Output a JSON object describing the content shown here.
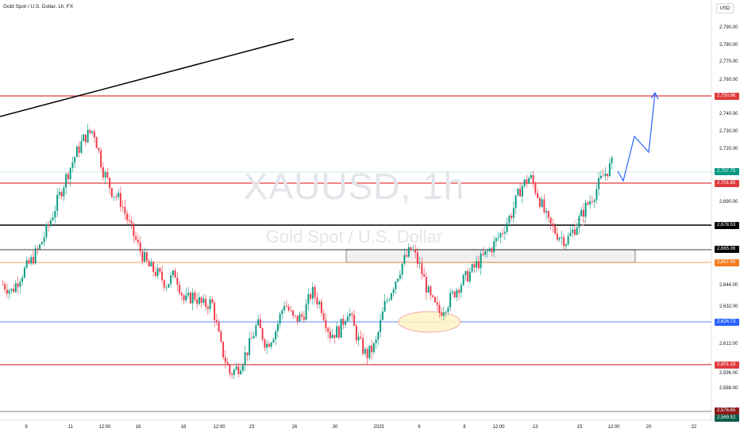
{
  "header": {
    "symbol_title": "Gold Spot / U.S. Dollar, 1h, FX",
    "currency_button": "USD"
  },
  "watermark": {
    "symbol": "XAUUSD, 1h",
    "description": "Gold Spot / U.S. Dollar"
  },
  "price_axis": {
    "labels": [
      "2,790.00",
      "2,780.00",
      "2,770.00",
      "2,760.00",
      "2,740.00",
      "2,730.00",
      "2,720.00",
      "2,690.00",
      "2,644.00",
      "2,632.00",
      "2,612.00",
      "2,596.00",
      "2,588.00"
    ]
  },
  "price_tags": [
    {
      "text": "2,750.96",
      "color": "#e03a3e"
    },
    {
      "text": "2,707.75",
      "color": "#089981"
    },
    {
      "text": "2,701.65",
      "color": "#e03a3e"
    },
    {
      "text": "2,678.53",
      "color": "#000000"
    },
    {
      "text": "2,665.06",
      "color": "#000000"
    },
    {
      "text": "2,657.40",
      "color": "#f57c1f"
    },
    {
      "text": "2,624.73",
      "color": "#2962ff"
    },
    {
      "text": "2,601.19",
      "color": "#e03a3e"
    },
    {
      "text": "2,576.65",
      "color": "#8b1a1a"
    },
    {
      "text": "2,569.52",
      "color": "#0b5a4b"
    }
  ],
  "time_axis": {
    "labels": [
      "9",
      "11",
      "12:00",
      "16",
      "18",
      "12:00",
      "23",
      "26",
      "30",
      "2025",
      "6",
      "8",
      "12:00",
      "13",
      "15",
      "12:00",
      "20",
      "22"
    ]
  },
  "colors": {
    "up_candle": "#089981",
    "down_candle": "#f23645",
    "support_red": "#e03a3e",
    "projection": "#2962ff",
    "range_box_fill": "#f0f0f0",
    "ellipse_fill": "#fff3c4"
  },
  "chart_data": {
    "type": "candlestick",
    "symbol": "XAUUSD",
    "interval": "1h",
    "y_range": [
      2565,
      2795
    ],
    "horizontal_levels": [
      2750.96,
      2707.75,
      2701.65,
      2678.53,
      2665.06,
      2657.4,
      2624.73,
      2601.19,
      2569.52
    ],
    "close_path": [
      2640,
      2636,
      2645,
      2652,
      2660,
      2672,
      2686,
      2700,
      2712,
      2722,
      2726,
      2704,
      2692,
      2686,
      2672,
      2660,
      2650,
      2646,
      2640,
      2646,
      2630,
      2634,
      2628,
      2630,
      2605,
      2590,
      2594,
      2604,
      2618,
      2606,
      2614,
      2630,
      2620,
      2622,
      2636,
      2628,
      2612,
      2614,
      2626,
      2610,
      2600,
      2606,
      2628,
      2640,
      2652,
      2660,
      2648,
      2632,
      2624,
      2630,
      2638,
      2644,
      2650,
      2656,
      2662,
      2670,
      2680,
      2694,
      2700,
      2688,
      2674,
      2668,
      2664,
      2672,
      2682,
      2690,
      2700,
      2707
    ]
  }
}
